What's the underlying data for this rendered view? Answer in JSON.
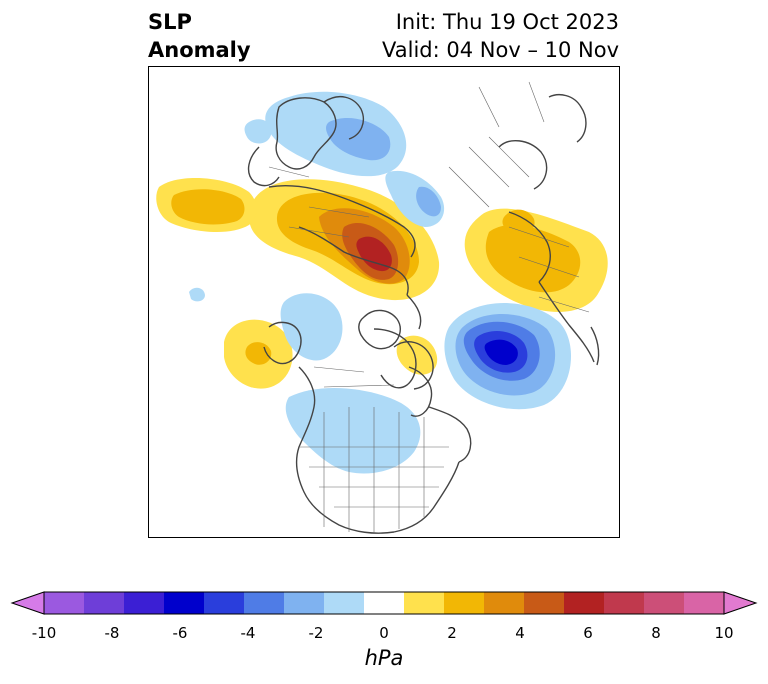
{
  "header": {
    "variable_line1": "SLP",
    "variable_line2": "Anomaly",
    "init_text": "Init: Thu 19 Oct 2023",
    "valid_text": "Valid: 04 Nov – 10 Nov"
  },
  "map": {
    "projection": "polar stereographic (North America / Arctic)",
    "field": "sea level pressure anomaly",
    "features": [
      {
        "kind": "positive",
        "region": "northern Siberia / Kara Sea",
        "peak_hPa": 6
      },
      {
        "kind": "positive",
        "region": "northeast Europe / western Russia",
        "peak_hPa": 3
      },
      {
        "kind": "positive",
        "region": "central Pacific",
        "peak_hPa": 2
      },
      {
        "kind": "positive",
        "region": "Hudson Bay",
        "peak_hPa": 1
      },
      {
        "kind": "negative",
        "region": "North Atlantic south of Greenland",
        "peak_hPa": -6
      },
      {
        "kind": "negative",
        "region": "Chukchi Sea / East Siberian Sea",
        "peak_hPa": -2
      },
      {
        "kind": "negative",
        "region": "Bering Sea / Alaska",
        "peak_hPa": -2
      },
      {
        "kind": "negative",
        "region": "central Canada / US Plains",
        "peak_hPa": -1
      }
    ]
  },
  "colorbar": {
    "unit_label": "hPa",
    "ticks": [
      "-10",
      "-8",
      "-6",
      "-4",
      "-2",
      "0",
      "2",
      "4",
      "6",
      "8",
      "10"
    ],
    "extend": "both",
    "colors": [
      "#d67be8",
      "#9b59e0",
      "#6e3ed8",
      "#3b1fd4",
      "#0000cc",
      "#2a3edc",
      "#4f7ce6",
      "#7fb2f0",
      "#aedaf7",
      "#ffffff",
      "#ffe14d",
      "#f2b705",
      "#e08b0c",
      "#c85a17",
      "#b22222",
      "#c0394d",
      "#cc4f78",
      "#d964a6",
      "#e27ad0"
    ]
  }
}
